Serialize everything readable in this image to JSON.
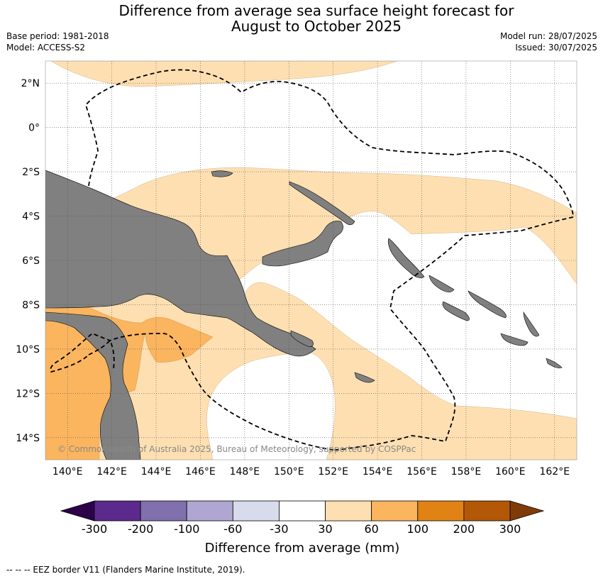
{
  "title_line1": "Difference from average sea surface height forecast for",
  "title_line2": "August to October 2025",
  "base_period": "Base period: 1981-2018",
  "model": "Model: ACCESS-S2",
  "model_run": "Model run: 28/07/2025",
  "issued": "Issued: 30/07/2025",
  "copyright": "© Commonwealth of Australia 2025, Bureau of Meteorology, supported by COSPPac",
  "footnote": "--  --  -- EEZ border V11 (Flanders Marine Institute, 2019).",
  "colors": {
    "land": "#808080",
    "band_30_60": "#fedfb2",
    "band_60_100": "#fbb55f",
    "eez": "#000000",
    "grid": "#555555"
  },
  "map": {
    "lon_min": 139,
    "lon_max": 163,
    "lat_min": -15,
    "lat_max": 3,
    "lon_ticks": [
      140,
      142,
      144,
      146,
      148,
      150,
      152,
      154,
      156,
      158,
      160,
      162
    ],
    "lon_labels": [
      "140°E",
      "142°E",
      "144°E",
      "146°E",
      "148°E",
      "150°E",
      "152°E",
      "154°E",
      "156°E",
      "158°E",
      "160°E",
      "162°E"
    ],
    "lat_ticks": [
      2,
      0,
      -2,
      -4,
      -6,
      -8,
      -10,
      -12,
      -14
    ],
    "lat_labels": [
      "2°N",
      "0°",
      "2°S",
      "4°S",
      "6°S",
      "8°S",
      "10°S",
      "12°S",
      "14°S"
    ]
  },
  "colorbar": {
    "title": "Difference from average (mm)",
    "tick_labels": [
      "-300",
      "-200",
      "-100",
      "-60",
      "-30",
      "30",
      "60",
      "100",
      "200",
      "300"
    ],
    "segment_colors": [
      "#5b2a8c",
      "#8070ae",
      "#b0a6d2",
      "#d8dbec",
      "#ffffff",
      "#fedfb2",
      "#fbb55f",
      "#e08214",
      "#b35806"
    ],
    "low_extend_color": "#2d004b",
    "high_extend_color": "#7f3b08"
  }
}
